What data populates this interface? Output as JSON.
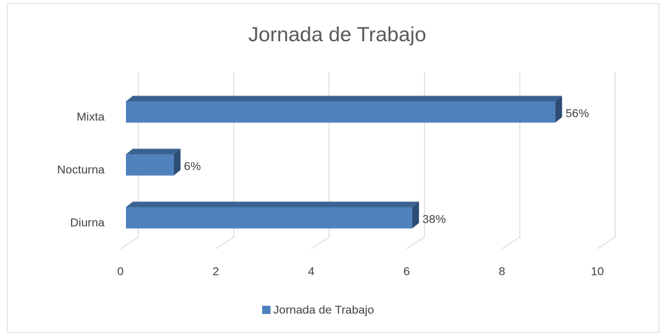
{
  "chart_data": {
    "type": "bar3d",
    "orientation": "horizontal",
    "title": "Jornada de Trabajo",
    "categories": [
      "Diurna",
      "Nocturna",
      "Mixta"
    ],
    "series": [
      {
        "name": "Jornada de Trabajo",
        "color": "#4f81bd",
        "values": [
          6,
          1,
          9
        ],
        "value_labels": [
          "38%",
          "6%",
          "56%"
        ]
      }
    ],
    "xlim": [
      0,
      10
    ],
    "xticks": [
      0,
      2,
      4,
      6,
      8,
      10
    ],
    "grid": true,
    "legend": "bottom"
  }
}
